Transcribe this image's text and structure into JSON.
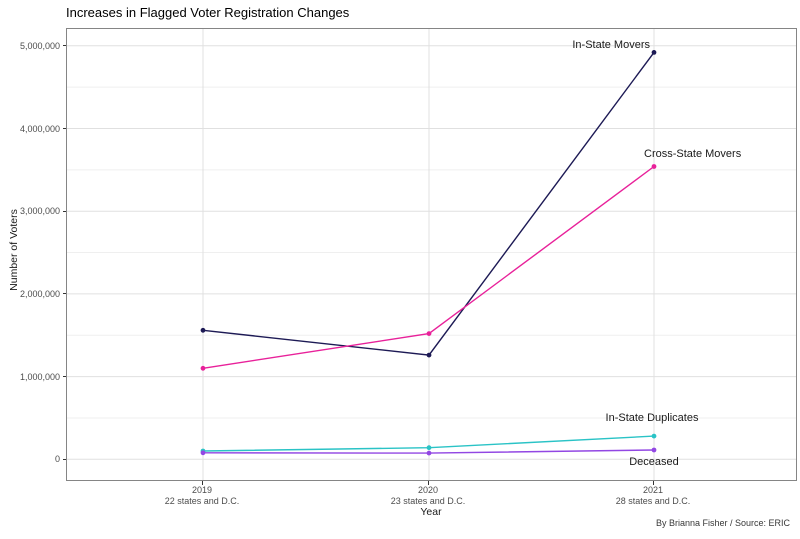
{
  "title": "Increases in Flagged Voter Registration Changes",
  "caption": "By Brianna Fisher / Source: ERIC",
  "chart_data": {
    "type": "line",
    "title": "Increases in Flagged Voter Registration Changes",
    "xlabel": "Year",
    "ylabel": "Number of Voters",
    "ylim": [
      0,
      5000000
    ],
    "grid": true,
    "legend_position": "none (direct series labels on plot)",
    "background": "#ffffff",
    "panel_border_color": "#858585",
    "major_grid_color": "#e0e0e0",
    "minor_grid_color": "#efefef",
    "y_major_ticks": [
      0,
      1000000,
      2000000,
      3000000,
      4000000,
      5000000
    ],
    "y_tick_labels": [
      "0",
      "1,000,000",
      "2,000,000",
      "3,000,000",
      "4,000,000",
      "5,000,000"
    ],
    "y_minor_ticks": [
      500000,
      1500000,
      2500000,
      3500000,
      4500000
    ],
    "categories": [
      "2019",
      "2020",
      "2021"
    ],
    "x_tick_sublabels": [
      "22 states and D.C.",
      "23 states and D.C.",
      "28 states and D.C."
    ],
    "series": [
      {
        "name": "In-State Movers",
        "color": "#1d1a55",
        "values": [
          1560000,
          1260000,
          4920000
        ]
      },
      {
        "name": "Cross-State Movers",
        "color": "#e8219a",
        "values": [
          1100000,
          1520000,
          3540000
        ]
      },
      {
        "name": "In-State Duplicates",
        "color": "#2ac3c6",
        "values": [
          100000,
          140000,
          280000
        ]
      },
      {
        "name": "Deceased",
        "color": "#9247e3",
        "values": [
          78000,
          75000,
          112000
        ]
      }
    ]
  }
}
